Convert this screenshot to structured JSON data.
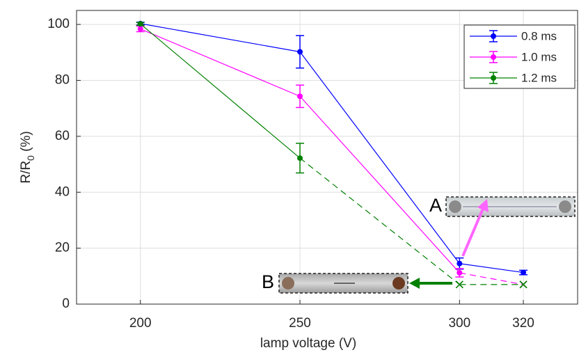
{
  "chart_data": {
    "type": "line",
    "categories_note_free": true,
    "x": [
      200,
      250,
      300,
      320
    ],
    "xlabel": "lamp voltage (V)",
    "ylabel": [
      "R/R",
      "0",
      " (%)"
    ],
    "xlim": [
      180,
      337
    ],
    "ylim": [
      0,
      105
    ],
    "xticks": [
      200,
      250,
      300,
      320
    ],
    "yticks": [
      0,
      20,
      40,
      60,
      80,
      100
    ],
    "grid": true,
    "legend": "upper right",
    "series": [
      {
        "name": "0.8 ms",
        "color": "#0000ff",
        "values": [
          100.3,
          90.2,
          14.5,
          11.3
        ],
        "errors": [
          0.5,
          5.8,
          2,
          0.8
        ],
        "markers": [
          "o",
          "o",
          "o",
          "o"
        ]
      },
      {
        "name": "1.0 ms",
        "color": "#ff00ff",
        "values": [
          98.4,
          74.3,
          11.2,
          7
        ],
        "errors": [
          1,
          4,
          1.5,
          null
        ],
        "markers": [
          "o",
          "o",
          "o",
          "x"
        ]
      },
      {
        "name": "1.2 ms",
        "color": "#008000",
        "values": [
          100.2,
          52.2,
          7,
          7
        ],
        "errors": [
          0.5,
          5.3,
          null,
          null
        ],
        "markers": [
          "o",
          "o",
          "x",
          "x"
        ]
      }
    ],
    "annotations": [
      "A",
      "B"
    ]
  }
}
